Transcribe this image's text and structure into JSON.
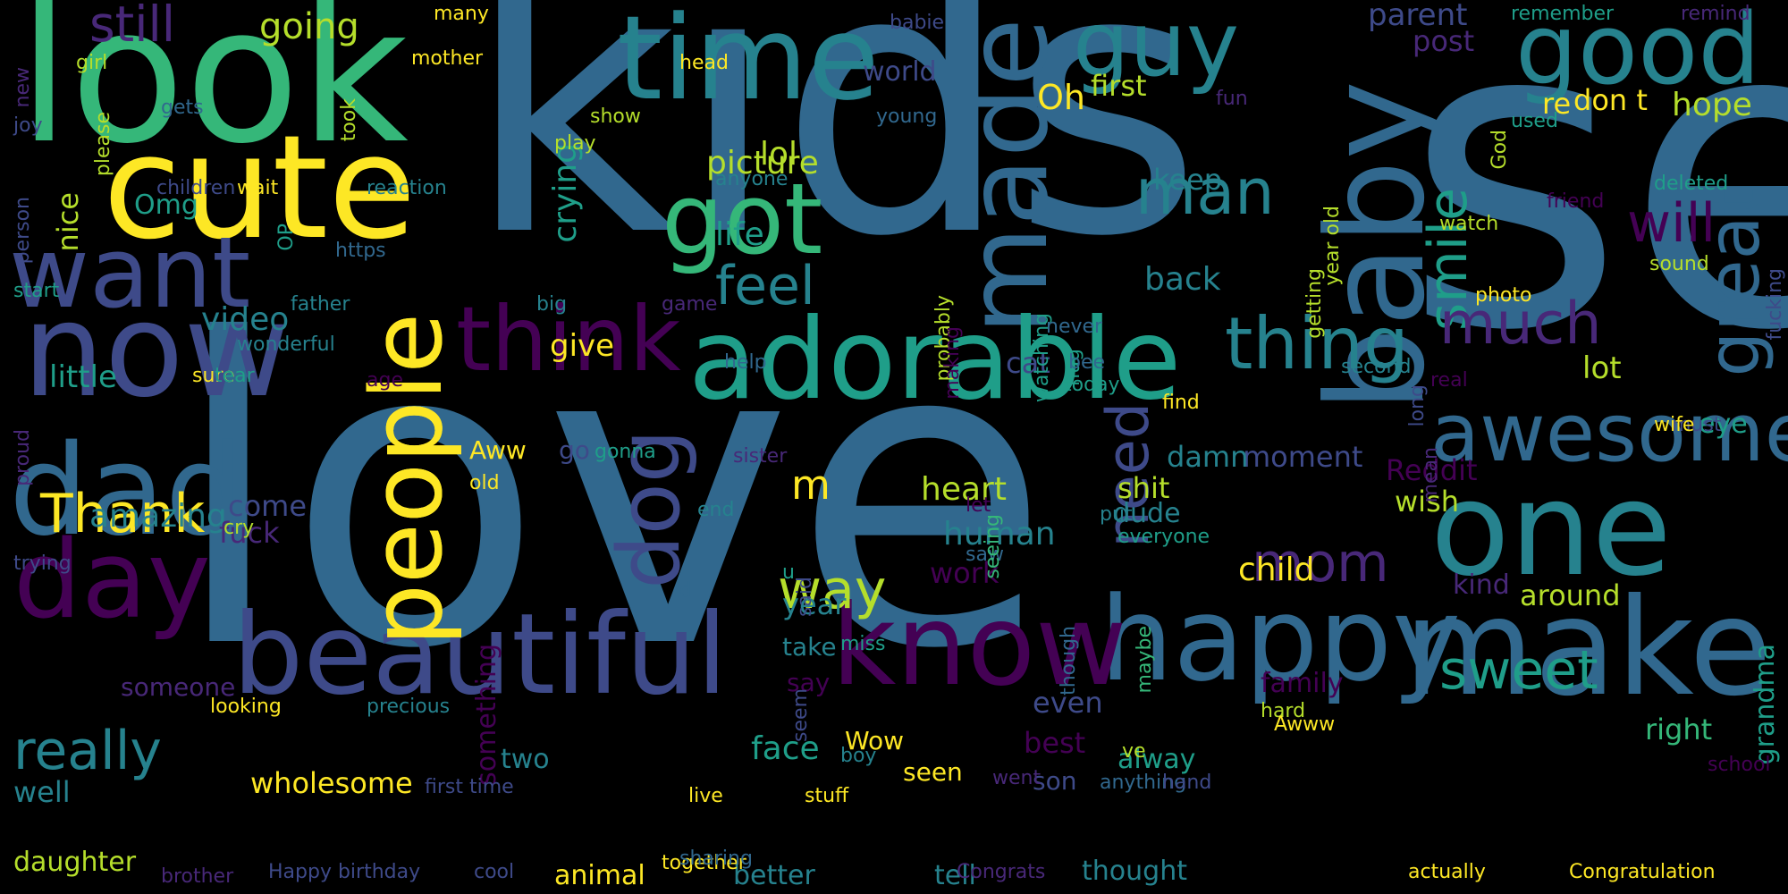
{
  "palette": {
    "background": "#000000",
    "colors": [
      "#440154",
      "#482878",
      "#3e4a89",
      "#31688e",
      "#26828e",
      "#1f9e89",
      "#35b779",
      "#6ece58",
      "#b5de2b",
      "#fde725"
    ]
  },
  "words": [
    {
      "text": "kids"
    },
    {
      "text": "love"
    },
    {
      "text": "look"
    },
    {
      "text": "cute"
    },
    {
      "text": "baby"
    },
    {
      "text": "see"
    },
    {
      "text": "time"
    },
    {
      "text": "made"
    },
    {
      "text": "good"
    },
    {
      "text": "guy"
    },
    {
      "text": "got"
    },
    {
      "text": "people"
    },
    {
      "text": "want"
    },
    {
      "text": "now"
    },
    {
      "text": "dad"
    },
    {
      "text": "day"
    },
    {
      "text": "adorable"
    },
    {
      "text": "think"
    },
    {
      "text": "one"
    },
    {
      "text": "happy"
    },
    {
      "text": "make"
    },
    {
      "text": "know"
    },
    {
      "text": "beautiful"
    },
    {
      "text": "awesome"
    },
    {
      "text": "dog"
    },
    {
      "text": "thing"
    },
    {
      "text": "man"
    },
    {
      "text": "great"
    },
    {
      "text": "smile"
    },
    {
      "text": "will"
    },
    {
      "text": "much"
    },
    {
      "text": "feel"
    },
    {
      "text": "way"
    },
    {
      "text": "sweet"
    },
    {
      "text": "mom"
    },
    {
      "text": "need"
    },
    {
      "text": "Thank"
    },
    {
      "text": "people"
    },
    {
      "text": "really"
    },
    {
      "text": "wholesome"
    },
    {
      "text": "still"
    },
    {
      "text": "going"
    },
    {
      "text": "Oh"
    },
    {
      "text": "first"
    },
    {
      "text": "parent"
    },
    {
      "text": "post"
    },
    {
      "text": "hope"
    },
    {
      "text": "don t"
    },
    {
      "text": "re"
    },
    {
      "text": "world"
    },
    {
      "text": "lol"
    },
    {
      "text": "picture"
    },
    {
      "text": "crying"
    },
    {
      "text": "life"
    },
    {
      "text": "give"
    },
    {
      "text": "video"
    },
    {
      "text": "little"
    },
    {
      "text": "nice"
    },
    {
      "text": "Omg"
    },
    {
      "text": "amazing"
    },
    {
      "text": "come"
    },
    {
      "text": "fuck"
    },
    {
      "text": "Aww"
    },
    {
      "text": "go"
    },
    {
      "text": "m"
    },
    {
      "text": "heart"
    },
    {
      "text": "human"
    },
    {
      "text": "shit"
    },
    {
      "text": "dude"
    },
    {
      "text": "moment"
    },
    {
      "text": "damn"
    },
    {
      "text": "keep"
    },
    {
      "text": "back"
    },
    {
      "text": "cat"
    },
    {
      "text": "lot"
    },
    {
      "text": "eye"
    },
    {
      "text": "Reddit"
    },
    {
      "text": "wish"
    },
    {
      "text": "child"
    },
    {
      "text": "kind"
    },
    {
      "text": "around"
    },
    {
      "text": "grandma"
    },
    {
      "text": "right"
    },
    {
      "text": "family"
    },
    {
      "text": "even"
    },
    {
      "text": "best"
    },
    {
      "text": "alway"
    },
    {
      "text": "son"
    },
    {
      "text": "seen"
    },
    {
      "text": "face"
    },
    {
      "text": "Wow"
    },
    {
      "text": "year"
    },
    {
      "text": "take"
    },
    {
      "text": "work"
    },
    {
      "text": "say"
    },
    {
      "text": "something"
    },
    {
      "text": "two"
    },
    {
      "text": "well"
    },
    {
      "text": "daughter"
    },
    {
      "text": "someone"
    },
    {
      "text": "looking"
    },
    {
      "text": "precious"
    },
    {
      "text": "animal"
    },
    {
      "text": "better"
    },
    {
      "text": "tell"
    },
    {
      "text": "thought"
    },
    {
      "text": "Happy birthday"
    },
    {
      "text": "brother"
    },
    {
      "text": "cool"
    },
    {
      "text": "Congrats"
    },
    {
      "text": "actually"
    },
    {
      "text": "Congratulation"
    },
    {
      "text": "school"
    },
    {
      "text": "fucking"
    },
    {
      "text": "sound"
    },
    {
      "text": "photo"
    },
    {
      "text": "deleted"
    },
    {
      "text": "friend"
    },
    {
      "text": "watch"
    },
    {
      "text": "year old"
    },
    {
      "text": "getting"
    },
    {
      "text": "remember"
    },
    {
      "text": "remind"
    },
    {
      "text": "used"
    },
    {
      "text": "God"
    },
    {
      "text": "fun"
    },
    {
      "text": "show"
    },
    {
      "text": "play"
    },
    {
      "text": "young"
    },
    {
      "text": "head"
    },
    {
      "text": "babie"
    },
    {
      "text": "many"
    },
    {
      "text": "mother"
    },
    {
      "text": "girl"
    },
    {
      "text": "please"
    },
    {
      "text": "gets"
    },
    {
      "text": "joy"
    },
    {
      "text": "new"
    },
    {
      "text": "took"
    },
    {
      "text": "children"
    },
    {
      "text": "wait"
    },
    {
      "text": "reaction"
    },
    {
      "text": "anyone"
    },
    {
      "text": "person"
    },
    {
      "text": "start"
    },
    {
      "text": "https"
    },
    {
      "text": "OP"
    },
    {
      "text": "father"
    },
    {
      "text": "wonderful"
    },
    {
      "text": "sure"
    },
    {
      "text": "tear"
    },
    {
      "text": "age"
    },
    {
      "text": "big"
    },
    {
      "text": "game"
    },
    {
      "text": "help"
    },
    {
      "text": "probably"
    },
    {
      "text": "making"
    },
    {
      "text": "watching"
    },
    {
      "text": "never"
    },
    {
      "text": "hug"
    },
    {
      "text": "bee"
    },
    {
      "text": "second"
    },
    {
      "text": "real"
    },
    {
      "text": "mean"
    },
    {
      "text": "must"
    },
    {
      "text": "today"
    },
    {
      "text": "find"
    },
    {
      "text": "long"
    },
    {
      "text": "wife"
    },
    {
      "text": "proud"
    },
    {
      "text": "trying"
    },
    {
      "text": "cry"
    },
    {
      "text": "old"
    },
    {
      "text": "gonna"
    },
    {
      "text": "sister"
    },
    {
      "text": "let"
    },
    {
      "text": "put"
    },
    {
      "text": "saw"
    },
    {
      "text": "seeing"
    },
    {
      "text": "everyone"
    },
    {
      "text": "u"
    },
    {
      "text": "miss"
    },
    {
      "text": "seem"
    },
    {
      "text": "end"
    },
    {
      "text": "d"
    },
    {
      "text": "said"
    },
    {
      "text": "boy"
    },
    {
      "text": "live"
    },
    {
      "text": "stuff"
    },
    {
      "text": "together"
    },
    {
      "text": "first time"
    },
    {
      "text": "sharing"
    },
    {
      "text": "went"
    },
    {
      "text": "anything"
    },
    {
      "text": "hand"
    },
    {
      "text": "maybe"
    },
    {
      "text": "though"
    },
    {
      "text": "ve"
    },
    {
      "text": "hard"
    },
    {
      "text": "Awww"
    }
  ]
}
